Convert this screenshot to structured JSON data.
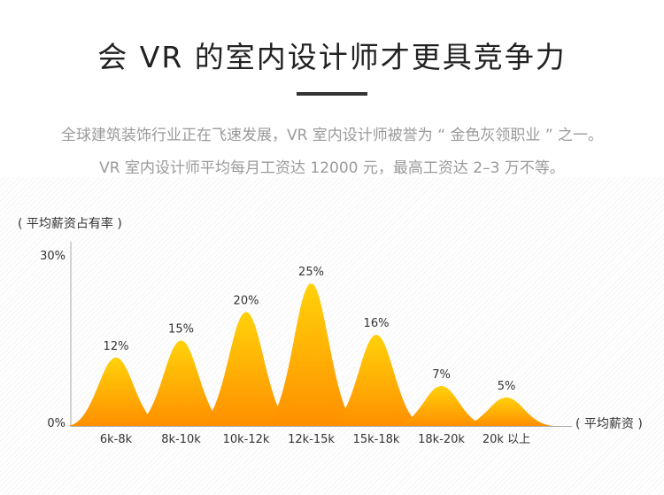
{
  "header": {
    "title": "会 VR 的室内设计师才更具竞争力",
    "desc_line1": "全球建筑装饰行业正在飞速发展，VR 室内设计师被誉为 “ 金色灰领职业 ” 之一。",
    "desc_line2": "VR 室内设计师平均每月工资达 12000 元，最高工资达 2–3 万不等。"
  },
  "chart_data": {
    "type": "area",
    "ylabel": "( 平均薪资占有率 )",
    "xlabel": "( 平均薪资 )",
    "ylim": [
      0,
      30
    ],
    "y_tick_labels": [
      "0%",
      "30%"
    ],
    "categories": [
      "6k-8k",
      "8k-10k",
      "10k-12k",
      "12k-15k",
      "15k-18k",
      "18k-20k",
      "20k 以上"
    ],
    "values": [
      12,
      15,
      20,
      25,
      16,
      7,
      5
    ],
    "value_labels": [
      "12%",
      "15%",
      "20%",
      "25%",
      "16%",
      "7%",
      "5%"
    ],
    "colors": {
      "peak_top": "#ffd20a",
      "peak_bottom": "#ff8f00",
      "axis": "#aaaaaa"
    }
  }
}
